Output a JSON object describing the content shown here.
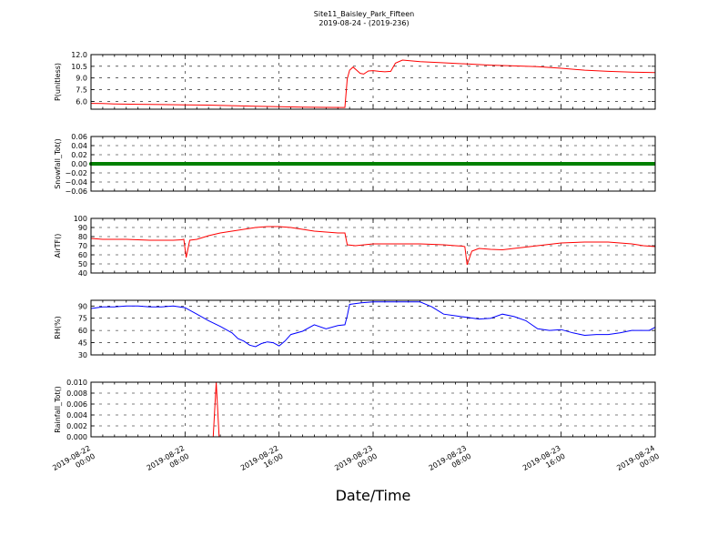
{
  "figure": {
    "title_line1": "Site11_Baisley_Park_Fifteen",
    "title_line2": "2019-08-24 - (2019-236)",
    "xlabel": "Date/Time"
  },
  "chart_data": [
    {
      "type": "line",
      "ylabel": "P(unitless)",
      "ylim": [
        5.0,
        12.0
      ],
      "yticks": [
        6.0,
        7.5,
        9.0,
        10.5,
        12.0
      ],
      "ytick_labels": [
        "6.0",
        "7.5",
        "9.0",
        "10.5",
        "12.0"
      ],
      "grid": true,
      "color": "#ff0000",
      "x": [
        0,
        1,
        2,
        4,
        6,
        8,
        10,
        12,
        14,
        16,
        18,
        20,
        21.6,
        21.8,
        22.0,
        22.3,
        22.6,
        22.9,
        23.2,
        23.6,
        24.0,
        24.5,
        25.0,
        25.5,
        25.9,
        26.5,
        28,
        30,
        32,
        34,
        36,
        38,
        40,
        42,
        44,
        46,
        48
      ],
      "series": [
        {
          "values": [
            5.75,
            5.72,
            5.68,
            5.63,
            5.6,
            5.56,
            5.52,
            5.45,
            5.38,
            5.32,
            5.27,
            5.23,
            5.22,
            8.9,
            10.0,
            10.4,
            10.0,
            9.6,
            9.5,
            9.9,
            9.95,
            9.85,
            9.8,
            9.85,
            10.9,
            11.3,
            11.1,
            10.95,
            10.8,
            10.65,
            10.55,
            10.45,
            10.25,
            10.0,
            9.85,
            9.75,
            9.7
          ]
        }
      ],
      "xticks": [
        0,
        8,
        16,
        24,
        32,
        40,
        48
      ]
    },
    {
      "type": "line",
      "ylabel": "Snowfall_Tot()",
      "ylim": [
        -0.06,
        0.06
      ],
      "yticks": [
        -0.06,
        -0.04,
        -0.02,
        0.0,
        0.02,
        0.04,
        0.06
      ],
      "ytick_labels": [
        "−0.06",
        "−0.04",
        "−0.02",
        "0.00",
        "0.02",
        "0.04",
        "0.06"
      ],
      "grid": true,
      "color": "#008000",
      "x": [
        0,
        48
      ],
      "series": [
        {
          "values": [
            0.0,
            0.0
          ]
        }
      ],
      "xticks": [
        0,
        8,
        16,
        24,
        32,
        40,
        48
      ]
    },
    {
      "type": "line",
      "ylabel": "AirTF()",
      "ylim": [
        40,
        100
      ],
      "yticks": [
        40,
        50,
        60,
        70,
        80,
        90,
        100
      ],
      "ytick_labels": [
        "40",
        "50",
        "60",
        "70",
        "80",
        "90",
        "100"
      ],
      "grid": true,
      "color": "#ff0000",
      "x": [
        0,
        1,
        3,
        5,
        7,
        7.7,
        7.9,
        8.1,
        8.4,
        9,
        10,
        11,
        12,
        13,
        14,
        15,
        16,
        17,
        18,
        19,
        20,
        21,
        21.6,
        21.8,
        22.5,
        24,
        26,
        28,
        29,
        30,
        31,
        31.6,
        31.8,
        32.0,
        32.4,
        33,
        34,
        35,
        36,
        38,
        40,
        42,
        44,
        46,
        47,
        48
      ],
      "series": [
        {
          "values": [
            78,
            77,
            77,
            76,
            76,
            76.5,
            77,
            57,
            76,
            77,
            81,
            84,
            86,
            88,
            90,
            91,
            91,
            90,
            88,
            86,
            85,
            84,
            84,
            71,
            70,
            72,
            72,
            72,
            71.5,
            71,
            70,
            69.5,
            69,
            49,
            64,
            67,
            66,
            65.5,
            67,
            70,
            73,
            74,
            74,
            72,
            70,
            69
          ]
        }
      ],
      "xticks": [
        0,
        8,
        16,
        24,
        32,
        40,
        48
      ]
    },
    {
      "type": "line",
      "ylabel": "RH(%)",
      "ylim": [
        30,
        97
      ],
      "yticks": [
        30,
        45,
        60,
        75,
        90
      ],
      "ytick_labels": [
        "30",
        "45",
        "60",
        "75",
        "90"
      ],
      "grid": true,
      "color": "#0000ff",
      "x": [
        0,
        1,
        2,
        3,
        4,
        5,
        6,
        7,
        8,
        9,
        10,
        11,
        12,
        12.5,
        13,
        13.5,
        14,
        14.5,
        15,
        15.5,
        16,
        16.5,
        17,
        18,
        19,
        20,
        21,
        21.6,
        21.8,
        22,
        23,
        24,
        26,
        28,
        29,
        30,
        31,
        32,
        33,
        34,
        35,
        36,
        37,
        38,
        39,
        40,
        41,
        42,
        43,
        44,
        45,
        46,
        47,
        47.5,
        48
      ],
      "series": [
        {
          "values": [
            87,
            89,
            89,
            90,
            90,
            89,
            89,
            90,
            88,
            80,
            72,
            65,
            57,
            50,
            47,
            42,
            40,
            44,
            46,
            45,
            41,
            47,
            55,
            59,
            67,
            62,
            66,
            67,
            78,
            92,
            94,
            95,
            95,
            95,
            89,
            80,
            78,
            76,
            74,
            75,
            80,
            77,
            72,
            62,
            60,
            61,
            57,
            54,
            55,
            55,
            57,
            60,
            60,
            60,
            64
          ]
        }
      ],
      "xticks": [
        0,
        8,
        16,
        24,
        32,
        40,
        48
      ]
    },
    {
      "type": "line",
      "ylabel": "Rainfall_Tot()",
      "ylim": [
        0.0,
        0.01
      ],
      "yticks": [
        0.0,
        0.002,
        0.004,
        0.006,
        0.008,
        0.01
      ],
      "ytick_labels": [
        "0.000",
        "0.002",
        "0.004",
        "0.006",
        "0.008",
        "0.010"
      ],
      "grid": true,
      "color": "#ff0000",
      "x": [
        0,
        10.4,
        10.65,
        10.9,
        48
      ],
      "series": [
        {
          "values": [
            0.0,
            0.0,
            0.01,
            0.0,
            0.0
          ]
        }
      ],
      "xticks": [
        0,
        8,
        16,
        24,
        32,
        40,
        48
      ]
    }
  ],
  "x_tick_labels": [
    [
      "2019-08-22",
      "00:00"
    ],
    [
      "2019-08-22",
      "08:00"
    ],
    [
      "2019-08-22",
      "16:00"
    ],
    [
      "2019-08-23",
      "00:00"
    ],
    [
      "2019-08-23",
      "08:00"
    ],
    [
      "2019-08-23",
      "16:00"
    ],
    [
      "2019-08-24",
      "00:00"
    ]
  ]
}
